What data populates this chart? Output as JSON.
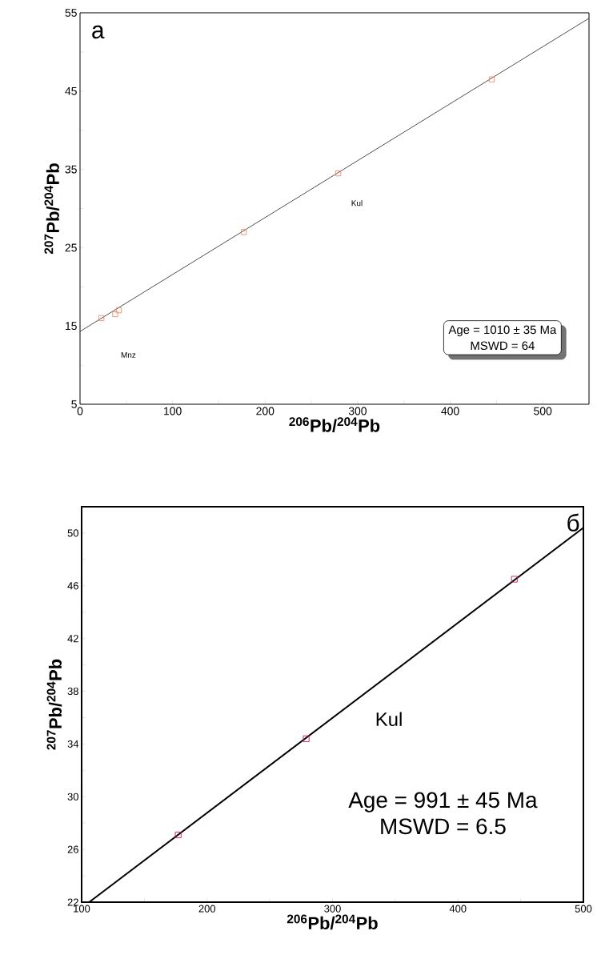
{
  "chart_data": [
    {
      "type": "scatter",
      "xlabel": "$^{206}$Pb/$^{204}$Pb",
      "ylabel": "$^{207}$Pb/$^{204}$Pb",
      "xlim": [
        0,
        550
      ],
      "ylim": [
        5,
        55
      ],
      "xticks": [
        0,
        {
          "value": 50,
          "label": null
        },
        100,
        {
          "value": 150,
          "label": null
        },
        200,
        {
          "value": 250,
          "label": null
        },
        300,
        {
          "value": 350,
          "label": null
        },
        400,
        {
          "value": 450,
          "label": null
        },
        500
      ],
      "yticks": [
        5,
        {
          "value": 10,
          "label": null
        },
        15,
        {
          "value": 20,
          "label": null
        },
        25,
        {
          "value": 30,
          "label": null
        },
        35,
        {
          "value": 40,
          "label": null
        },
        45,
        {
          "value": 50,
          "label": null
        },
        55
      ],
      "marker": "square",
      "series": [
        {
          "color": "#f08a6a",
          "x": [
            23,
            38,
            42,
            177,
            279,
            445
          ],
          "values": [
            16,
            16.5,
            17,
            27,
            34.5,
            46.5
          ]
        },
        {
          "type": "line",
          "color": "#222222",
          "marker": "none",
          "x": [
            0,
            550
          ],
          "values": [
            14.3,
            54.3
          ]
        }
      ],
      "annotations": [
        "а",
        "Age = 1010 ± 35 Ma",
        "MSWD = 64",
        "Kul",
        "Mnz"
      ]
    },
    {
      "type": "scatter",
      "xlabel": "$^{206}$Pb/$^{204}$Pb",
      "ylabel": "$^{207}$Pb/$^{204}$Pb",
      "xlim": [
        100,
        500
      ],
      "ylim": [
        22,
        52
      ],
      "xticks": [
        100,
        {
          "value": 150,
          "label": null
        },
        200,
        {
          "value": 250,
          "label": null
        },
        300,
        {
          "value": 350,
          "label": null
        },
        400,
        {
          "value": 450,
          "label": null
        },
        500
      ],
      "yticks": [
        22,
        {
          "value": 24,
          "label": null
        },
        26,
        {
          "value": 28,
          "label": null
        },
        30,
        {
          "value": 32,
          "label": null
        },
        34,
        {
          "value": 36,
          "label": null
        },
        38,
        {
          "value": 40,
          "label": null
        },
        42,
        {
          "value": 44,
          "label": null
        },
        46,
        {
          "value": 48,
          "label": null
        },
        50,
        {
          "value": 52,
          "label": null
        }
      ],
      "marker": "square",
      "series": [
        {
          "color": "#c8184a",
          "x": [
            177,
            279,
            445
          ],
          "values": [
            27.1,
            34.4,
            46.5
          ]
        },
        {
          "type": "line",
          "color": "#000000",
          "marker": "none",
          "x": [
            106,
            500
          ],
          "values": [
            22,
            50.4
          ]
        }
      ],
      "annotations": [
        "б",
        "Age = 991 ± 45 Ma",
        "MSWD = 6.5",
        "Kul"
      ]
    }
  ]
}
